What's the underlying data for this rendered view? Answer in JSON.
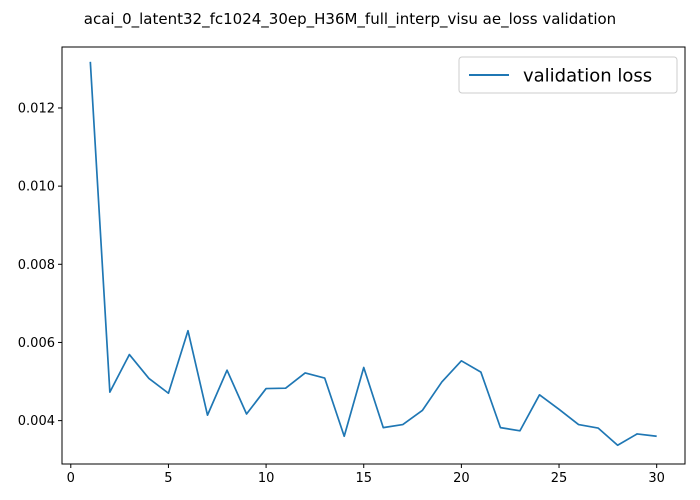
{
  "chart_data": {
    "type": "line",
    "title": "acai_0_latent32_fc1024_30ep_H36M_full_interp_visu ae_loss validation",
    "xlabel": "",
    "ylabel": "",
    "xlim": [
      -0.45,
      31.45
    ],
    "ylim": [
      0.00289,
      0.01356
    ],
    "x_ticks": [
      0,
      5,
      10,
      15,
      20,
      25,
      30
    ],
    "x_tick_labels": [
      "0",
      "5",
      "10",
      "15",
      "20",
      "25",
      "30"
    ],
    "y_ticks": [
      0.004,
      0.006,
      0.008,
      0.01,
      0.012
    ],
    "y_tick_labels": [
      "0.004",
      "0.006",
      "0.008",
      "0.010",
      "0.012"
    ],
    "grid": false,
    "legend_position": "top-right",
    "series": [
      {
        "name": "validation loss",
        "color": "#1f77b4",
        "x": [
          1,
          2,
          3,
          4,
          5,
          6,
          7,
          8,
          9,
          10,
          11,
          12,
          13,
          14,
          15,
          16,
          17,
          18,
          19,
          20,
          21,
          22,
          23,
          24,
          25,
          26,
          27,
          28,
          29,
          30
        ],
        "y": [
          0.01318,
          0.00473,
          0.00569,
          0.00508,
          0.0047,
          0.0063,
          0.00414,
          0.00529,
          0.00417,
          0.00482,
          0.00483,
          0.00522,
          0.00509,
          0.0036,
          0.00536,
          0.00382,
          0.0039,
          0.00426,
          0.00499,
          0.00553,
          0.00524,
          0.00382,
          0.00374,
          0.00466,
          0.00429,
          0.0039,
          0.00381,
          0.00337,
          0.00366,
          0.0036
        ]
      }
    ]
  }
}
